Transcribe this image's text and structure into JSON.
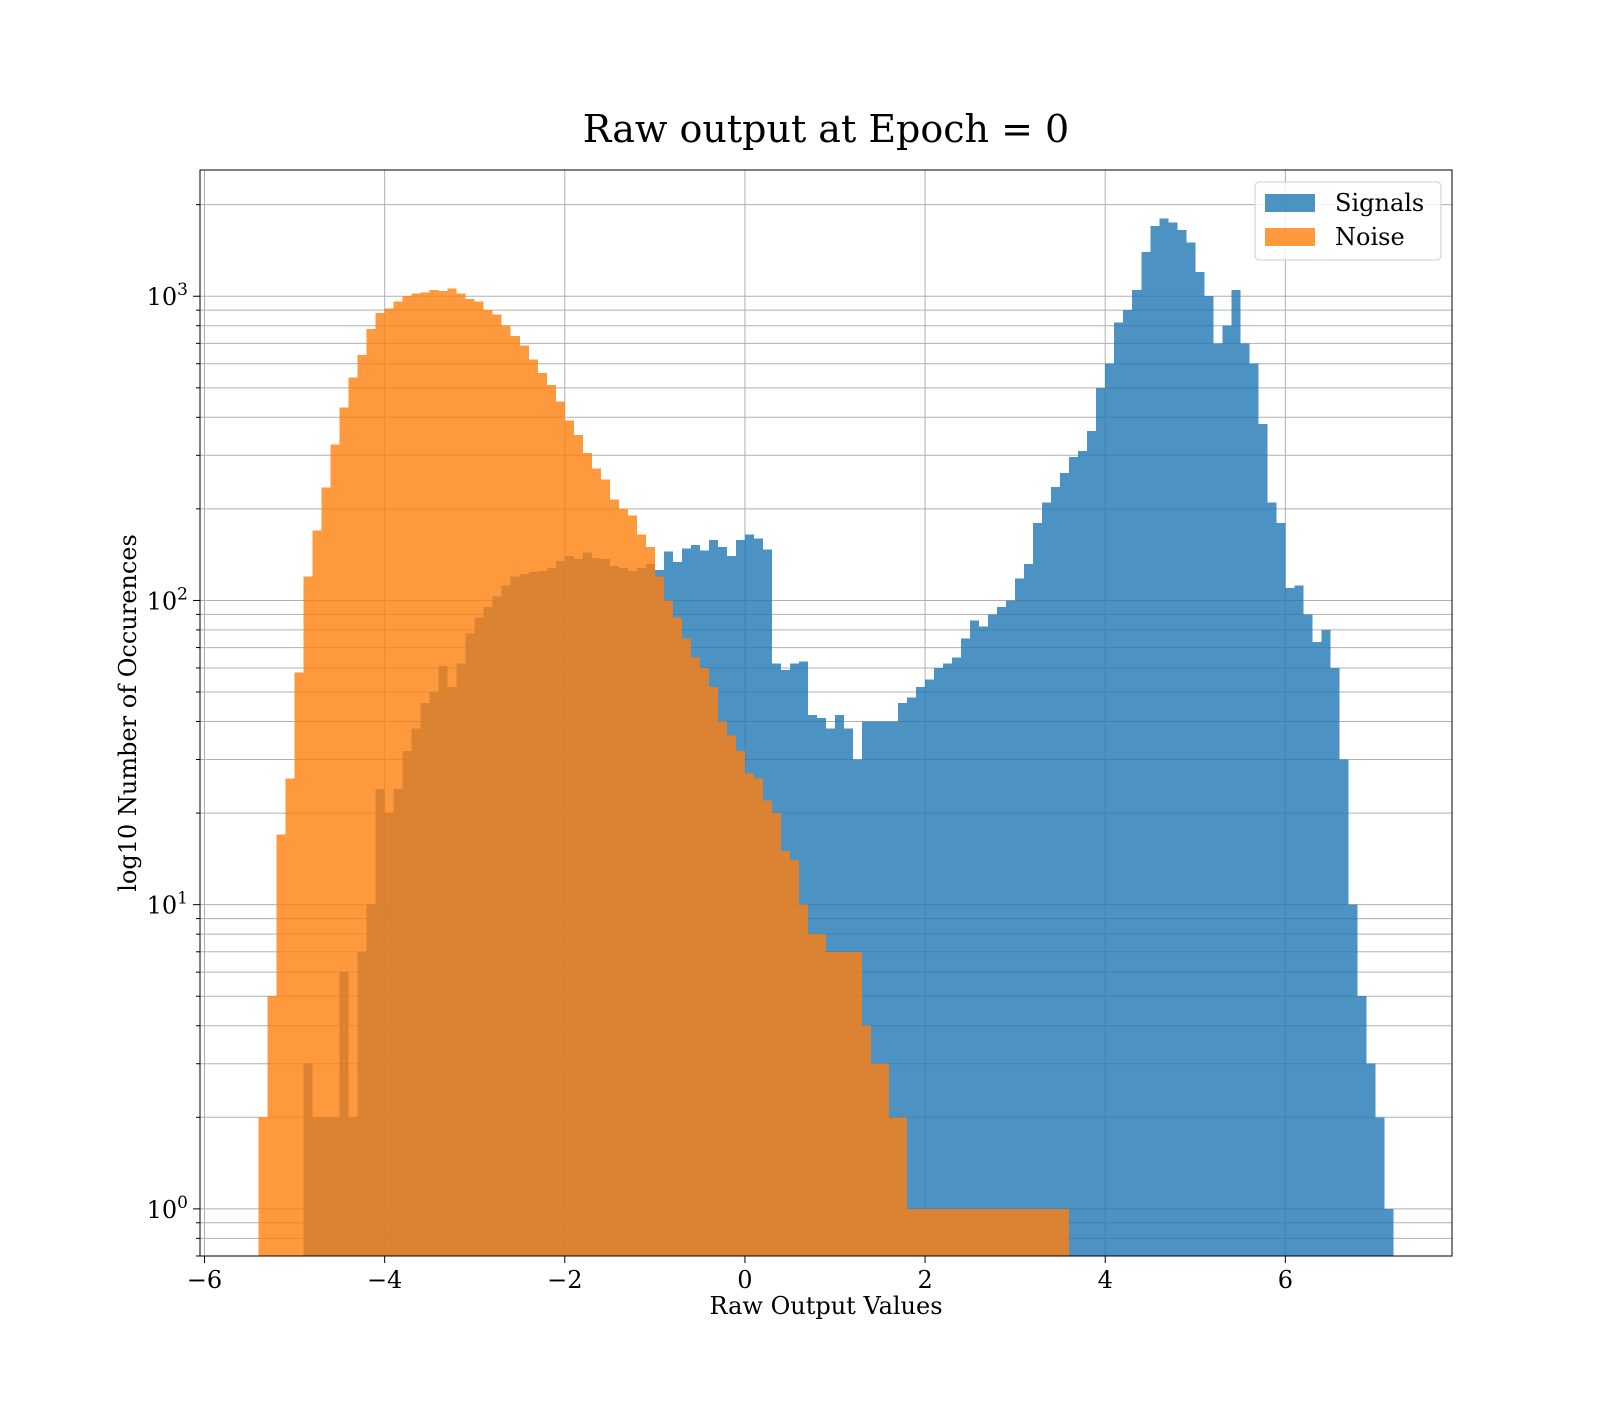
{
  "chart_data": {
    "type": "histogram",
    "title": "Raw output at Epoch = 0",
    "xlabel": "Raw Output Values",
    "ylabel": "log10 Number of Occurences",
    "xlim": [
      -6.05,
      7.85
    ],
    "ylim": [
      0.7,
      2600
    ],
    "yscale": "log",
    "grid": true,
    "legend_position": "top-right",
    "x_ticks": [
      {
        "value": -6,
        "label": "−6"
      },
      {
        "value": -4,
        "label": "−4"
      },
      {
        "value": -2,
        "label": "−2"
      },
      {
        "value": 0,
        "label": "0"
      },
      {
        "value": 2,
        "label": "2"
      },
      {
        "value": 4,
        "label": "4"
      },
      {
        "value": 6,
        "label": "6"
      }
    ],
    "y_ticks": [
      {
        "value": 1,
        "base": "10",
        "exponent": "0"
      },
      {
        "value": 10,
        "base": "10",
        "exponent": "1"
      },
      {
        "value": 100,
        "base": "10",
        "exponent": "2"
      },
      {
        "value": 1000,
        "base": "10",
        "exponent": "3"
      }
    ],
    "series": [
      {
        "name": "Signals",
        "color": "#1f77b4",
        "alpha": 0.8,
        "bin_edges": [
          -4.9,
          -4.8,
          -4.7,
          -4.6,
          -4.5,
          -4.4,
          -4.3,
          -4.2,
          -4.1,
          -4.0,
          -3.9,
          -3.8,
          -3.7,
          -3.6,
          -3.5,
          -3.4,
          -3.3,
          -3.2,
          -3.1,
          -3.0,
          -2.9,
          -2.8,
          -2.7,
          -2.6,
          -2.5,
          -2.4,
          -2.3,
          -2.2,
          -2.1,
          -2.0,
          -1.9,
          -1.8,
          -1.7,
          -1.6,
          -1.5,
          -1.4,
          -1.3,
          -1.2,
          -1.1,
          -1.0,
          -0.9,
          -0.8,
          -0.7,
          -0.6,
          -0.5,
          -0.4,
          -0.3,
          -0.2,
          -0.1,
          0.0,
          0.1,
          0.2,
          0.3,
          0.4,
          0.5,
          0.6,
          0.7,
          0.8,
          0.9,
          1.0,
          1.1,
          1.2,
          1.3,
          1.4,
          1.5,
          1.6,
          1.7,
          1.8,
          1.9,
          2.0,
          2.1,
          2.2,
          2.3,
          2.4,
          2.5,
          2.6,
          2.7,
          2.8,
          2.9,
          3.0,
          3.1,
          3.2,
          3.3,
          3.4,
          3.5,
          3.6,
          3.7,
          3.8,
          3.9,
          4.0,
          4.1,
          4.2,
          4.3,
          4.4,
          4.5,
          4.6,
          4.7,
          4.8,
          4.9,
          5.0,
          5.1,
          5.2,
          5.3,
          5.4,
          5.5,
          5.6,
          5.7,
          5.8,
          5.9,
          6.0,
          6.1,
          6.2,
          6.3,
          6.4,
          6.5,
          6.6,
          6.7,
          6.8,
          6.9,
          7.0,
          7.1,
          7.2
        ],
        "counts": [
          3,
          2,
          2,
          2,
          6,
          2,
          7,
          10,
          24,
          20,
          24,
          32,
          38,
          46,
          50,
          61,
          52,
          62,
          78,
          88,
          95,
          103,
          112,
          120,
          122,
          124,
          125,
          128,
          135,
          140,
          137,
          144,
          138,
          137,
          130,
          128,
          125,
          128,
          132,
          126,
          145,
          134,
          148,
          152,
          146,
          158,
          150,
          140,
          158,
          165,
          160,
          147,
          62,
          59,
          62,
          63,
          42,
          41,
          38,
          42,
          38,
          30,
          40,
          40,
          40,
          40,
          46,
          48,
          52,
          55,
          60,
          62,
          65,
          75,
          86,
          82,
          90,
          95,
          100,
          118,
          132,
          180,
          210,
          236,
          262,
          296,
          310,
          360,
          500,
          600,
          820,
          900,
          1050,
          1400,
          1700,
          1800,
          1750,
          1650,
          1500,
          1200,
          1000,
          700,
          800,
          1050,
          700,
          600,
          380,
          210,
          180,
          110,
          112,
          90,
          73,
          80,
          60,
          30,
          10,
          5,
          3,
          2,
          1
        ]
      },
      {
        "name": "Noise",
        "color": "#ff7f0e",
        "alpha": 0.8,
        "bin_edges": [
          -5.4,
          -5.3,
          -5.2,
          -5.1,
          -5.0,
          -4.9,
          -4.8,
          -4.7,
          -4.6,
          -4.5,
          -4.4,
          -4.3,
          -4.2,
          -4.1,
          -4.0,
          -3.9,
          -3.8,
          -3.7,
          -3.6,
          -3.5,
          -3.4,
          -3.3,
          -3.2,
          -3.1,
          -3.0,
          -2.9,
          -2.8,
          -2.7,
          -2.6,
          -2.5,
          -2.4,
          -2.3,
          -2.2,
          -2.1,
          -2.0,
          -1.9,
          -1.8,
          -1.7,
          -1.6,
          -1.5,
          -1.4,
          -1.3,
          -1.2,
          -1.1,
          -1.0,
          -0.9,
          -0.8,
          -0.7,
          -0.6,
          -0.5,
          -0.4,
          -0.3,
          -0.2,
          -0.1,
          0.0,
          0.1,
          0.2,
          0.3,
          0.4,
          0.5,
          0.6,
          0.7,
          0.8,
          0.9,
          1.0,
          1.1,
          1.2,
          1.3,
          1.4,
          1.5,
          1.6,
          1.7,
          1.8,
          1.9,
          2.0,
          2.1,
          2.2,
          2.3,
          2.4,
          2.5,
          2.6,
          2.7,
          2.8,
          2.9,
          3.0,
          3.1,
          3.2,
          3.3,
          3.4,
          3.5,
          3.6
        ],
        "counts": [
          2,
          5,
          17,
          26,
          58,
          120,
          170,
          235,
          325,
          430,
          540,
          640,
          780,
          880,
          910,
          960,
          1000,
          1020,
          1030,
          1050,
          1040,
          1060,
          1020,
          980,
          960,
          900,
          870,
          800,
          740,
          690,
          620,
          560,
          510,
          450,
          390,
          350,
          305,
          272,
          250,
          215,
          200,
          190,
          165,
          150,
          120,
          100,
          88,
          75,
          65,
          60,
          52,
          40,
          36,
          32,
          27,
          26,
          22,
          20,
          15,
          14,
          10,
          8,
          8,
          7,
          7,
          7,
          7,
          4,
          3,
          3,
          2,
          2,
          1,
          1,
          1,
          1,
          1,
          1,
          1,
          1,
          1,
          1,
          1,
          1,
          1,
          1,
          1,
          1,
          1,
          1
        ]
      }
    ]
  }
}
